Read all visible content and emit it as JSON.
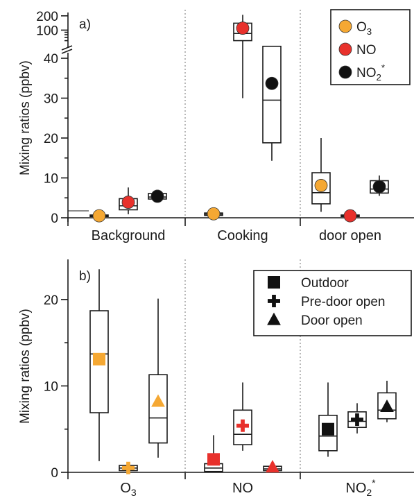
{
  "colors": {
    "o3": "#f5a833",
    "no": "#e8312c",
    "no2": "#111111",
    "axis": "#1a1a1a",
    "divider": "#8a8a8a"
  },
  "chart_data": [
    {
      "type": "boxplot",
      "panel_label": "a)",
      "ylabel": "Mixing ratios (ppbv)",
      "y_lower_ticks": [
        "0",
        "10",
        "20",
        "30",
        "40"
      ],
      "y_upper_ticks": [
        "100",
        "200"
      ],
      "ylim_lower": [
        0,
        43
      ],
      "ylim_upper": [
        50,
        220
      ],
      "broken_axis": true,
      "categories": [
        "Background",
        "Cooking",
        "door open"
      ],
      "legend": [
        {
          "label": "O",
          "sub": "3",
          "sup": "",
          "color": "o3"
        },
        {
          "label": "NO",
          "sub": "",
          "sup": "",
          "color": "no"
        },
        {
          "label": "NO",
          "sub": "2",
          "sup": "*",
          "color": "no2"
        }
      ],
      "series": [
        {
          "species": "O3",
          "color": "o3",
          "boxes": [
            {
              "category": "Background",
              "min": 0.3,
              "q1": 0.3,
              "median": 0.5,
              "q3": 0.7,
              "max": 0.7,
              "mean": 0.5
            },
            {
              "category": "Cooking",
              "min": 0.6,
              "q1": 0.6,
              "median": 0.9,
              "q3": 1.2,
              "max": 1.2,
              "mean": 1.0
            },
            {
              "category": "door open",
              "min": 1.5,
              "q1": 3.5,
              "median": 6.3,
              "q3": 11.3,
              "max": 20.0,
              "mean": 8.1
            }
          ]
        },
        {
          "species": "NO",
          "color": "no",
          "boxes": [
            {
              "category": "Background",
              "min": 0.9,
              "q1": 2.0,
              "median": 3.0,
              "q3": 4.8,
              "max": 7.6,
              "mean": 3.9
            },
            {
              "category": "Cooking",
              "min": 30,
              "q1": 60,
              "median": 85,
              "q3": 140,
              "max": 210,
              "mean": 110
            },
            {
              "category": "door open",
              "min": 0.3,
              "q1": 0.3,
              "median": 0.5,
              "q3": 0.7,
              "max": 0.7,
              "mean": 0.5
            }
          ]
        },
        {
          "species": "NO2*",
          "color": "no2",
          "boxes": [
            {
              "category": "Background",
              "min": 4.3,
              "q1": 4.7,
              "median": 5.2,
              "q3": 6.1,
              "max": 6.4,
              "mean": 5.4
            },
            {
              "category": "Cooking",
              "min": 14.3,
              "q1": 18.8,
              "median": 29.5,
              "q3": 43.0,
              "max": 45.5,
              "mean": 33.7
            },
            {
              "category": "door open",
              "min": 5.5,
              "q1": 6.2,
              "median": 7.2,
              "q3": 9.3,
              "max": 10.6,
              "mean": 7.8
            }
          ]
        }
      ]
    },
    {
      "type": "boxplot",
      "panel_label": "b)",
      "ylabel": "Mixing ratios (ppbv)",
      "y_ticks": [
        "0",
        "10",
        "20"
      ],
      "ylim": [
        0,
        24
      ],
      "categories": [
        {
          "label": "O",
          "sub": "3",
          "sup": "",
          "color": "o3"
        },
        {
          "label": "NO",
          "sub": "",
          "sup": "",
          "color": "no"
        },
        {
          "label": "NO",
          "sub": "2",
          "sup": "*",
          "color": "no2"
        }
      ],
      "legend": [
        {
          "label": "Outdoor",
          "marker": "square"
        },
        {
          "label": "Pre-door open",
          "marker": "plus"
        },
        {
          "label": "Door open",
          "marker": "triangle"
        }
      ],
      "series": [
        {
          "condition": "Outdoor",
          "marker": "square",
          "boxes": [
            {
              "category": "O3",
              "min": 1.3,
              "q1": 6.9,
              "median": 13.7,
              "q3": 18.7,
              "max": 23.5,
              "mean": 13.1
            },
            {
              "category": "NO",
              "min": 0.0,
              "q1": 0.1,
              "median": 0.5,
              "q3": 1.0,
              "max": 4.3,
              "mean": 1.5
            },
            {
              "category": "NO2*",
              "min": 1.8,
              "q1": 2.5,
              "median": 4.2,
              "q3": 6.6,
              "max": 10.4,
              "mean": 5.0
            }
          ]
        },
        {
          "condition": "Pre-door open",
          "marker": "plus",
          "boxes": [
            {
              "category": "O3",
              "min": 0.2,
              "q1": 0.2,
              "median": 0.5,
              "q3": 0.8,
              "max": 0.8,
              "mean": 0.5
            },
            {
              "category": "NO",
              "min": 2.5,
              "q1": 3.2,
              "median": 4.4,
              "q3": 7.2,
              "max": 10.4,
              "mean": 5.4
            },
            {
              "category": "NO2*",
              "min": 4.5,
              "q1": 5.2,
              "median": 5.9,
              "q3": 7.0,
              "max": 8.0,
              "mean": 6.1
            }
          ]
        },
        {
          "condition": "Door open",
          "marker": "triangle",
          "boxes": [
            {
              "category": "O3",
              "min": 1.7,
              "q1": 3.4,
              "median": 6.3,
              "q3": 11.3,
              "max": 20.1,
              "mean": 8.2
            },
            {
              "category": "NO",
              "min": 0.2,
              "q1": 0.2,
              "median": 0.4,
              "q3": 0.7,
              "max": 0.7,
              "mean": 0.6
            },
            {
              "category": "NO2*",
              "min": 5.8,
              "q1": 6.2,
              "median": 7.2,
              "q3": 9.2,
              "max": 10.6,
              "mean": 7.6
            }
          ]
        }
      ]
    }
  ]
}
